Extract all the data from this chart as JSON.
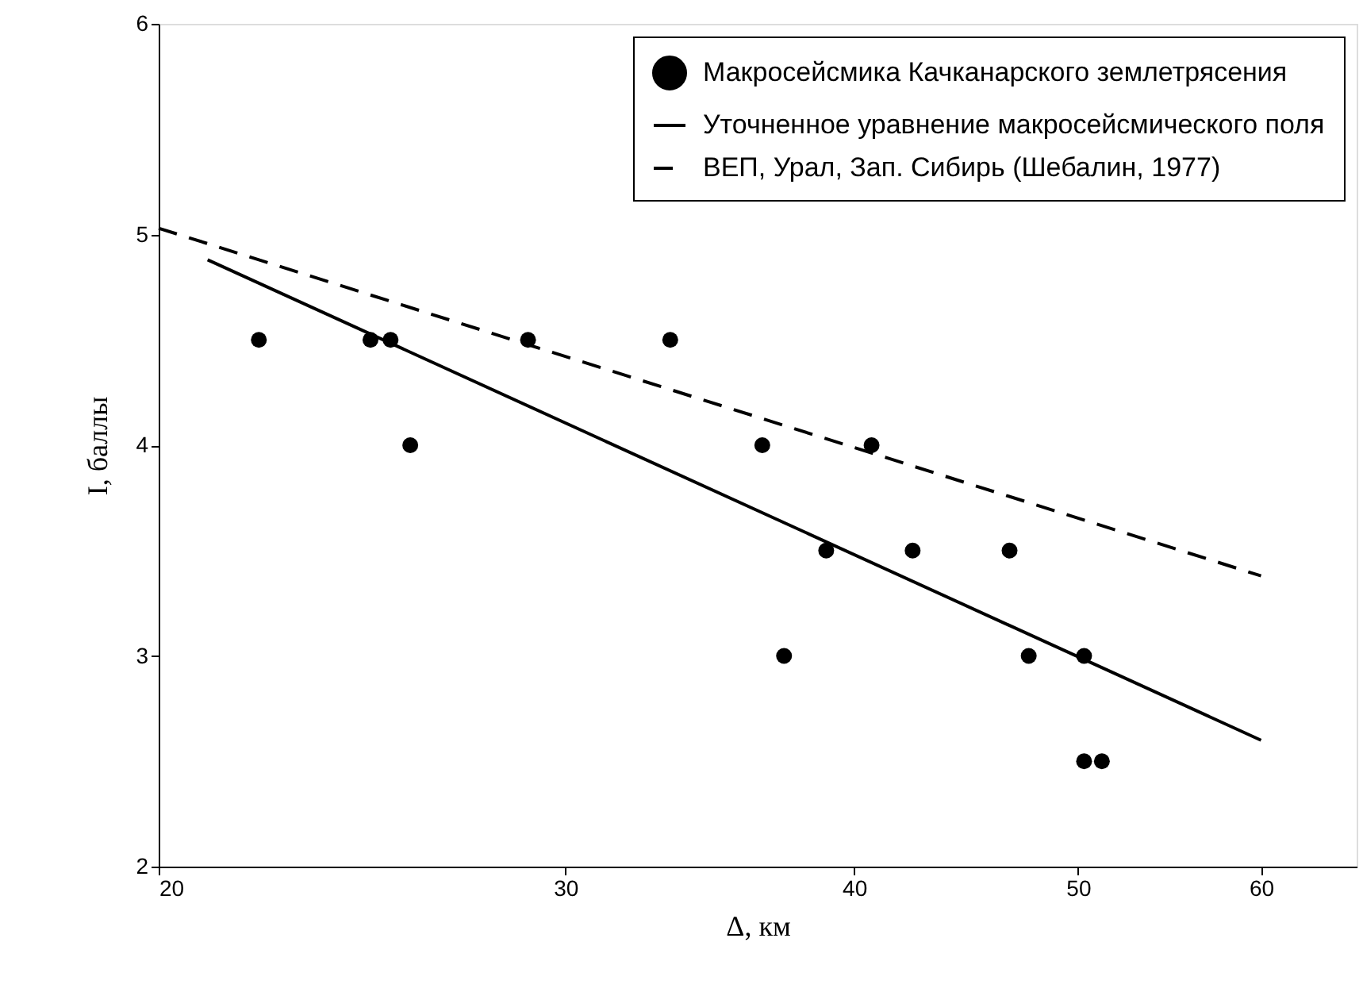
{
  "chart_data": {
    "type": "scatter",
    "xlabel": "Δ, км",
    "ylabel": "I, баллы",
    "log": "x",
    "xlim": [
      20,
      66
    ],
    "xticks": [
      20,
      30,
      40,
      50,
      60
    ],
    "ylim": [
      2,
      6
    ],
    "yticks": [
      2,
      3,
      4,
      5,
      6
    ],
    "grid": false,
    "legend": "top right",
    "series": [
      {
        "name": "Макросейсмика Качканарского землетрясения",
        "type": "scatter",
        "marker": "circle",
        "color": "#000000",
        "x": [
          22.1,
          24.7,
          25.2,
          25.7,
          28.9,
          33.3,
          36.5,
          37.3,
          38.9,
          40.7,
          42.4,
          46.7,
          47.6,
          50.3,
          50.3,
          51.2
        ],
        "values": [
          4.5,
          4.5,
          4.5,
          4.0,
          4.5,
          4.5,
          4.0,
          3.0,
          3.5,
          4.0,
          3.5,
          3.5,
          3.0,
          3.0,
          2.5,
          2.5
        ]
      },
      {
        "name": "Уточненное уравнение макросейсмического поля",
        "type": "line",
        "line_style": "solid",
        "color": "#000000",
        "x": [
          21,
          60
        ],
        "values": [
          4.88,
          2.6
        ]
      },
      {
        "name": "ВЕП, Урал, Зап. Сибирь (Шебалин, 1977)",
        "type": "line",
        "line_style": "dashed",
        "color": "#000000",
        "x": [
          20,
          60
        ],
        "values": [
          5.03,
          3.38
        ]
      }
    ]
  }
}
